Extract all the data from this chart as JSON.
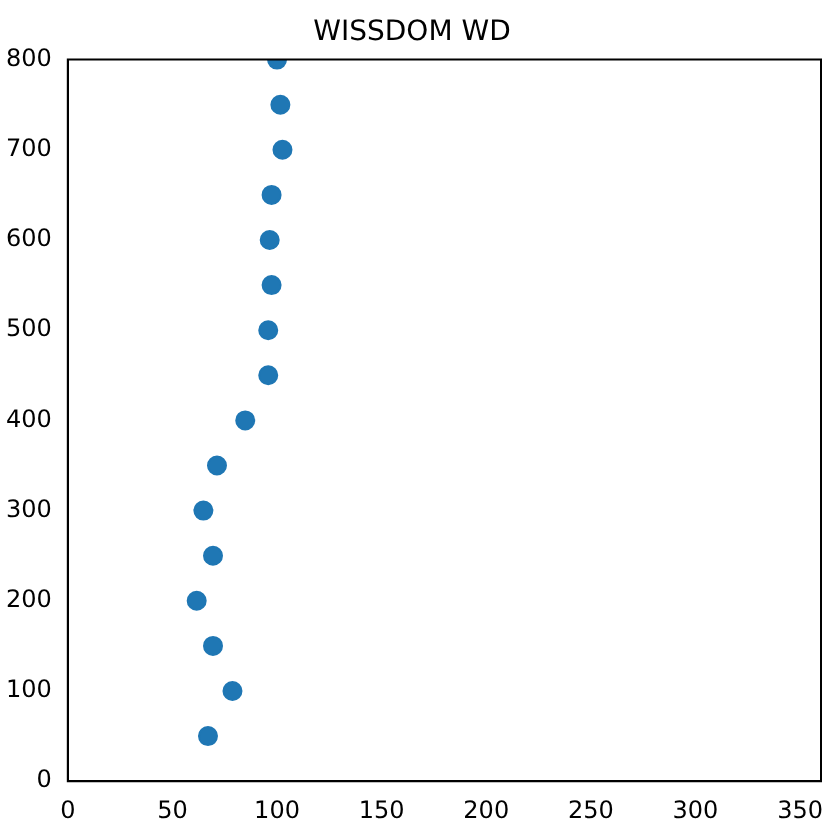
{
  "chart_data": {
    "type": "scatter",
    "title": "WISSDOM WD",
    "marker": "circle",
    "grid": false,
    "x": [
      67,
      78.7,
      69.4,
      61.6,
      69.4,
      64.8,
      71.3,
      84.8,
      95.8,
      95.8,
      97.4,
      96.5,
      97.4,
      102.6,
      101.6,
      100
    ],
    "values": [
      50,
      100,
      150,
      200,
      250,
      300,
      350,
      400,
      450,
      500,
      550,
      600,
      650,
      700,
      750,
      800
    ],
    "color": "#1f77b4",
    "xlim": [
      0,
      360
    ],
    "xticks": [
      0,
      50,
      100,
      150,
      200,
      250,
      300,
      350
    ],
    "ylim": [
      0,
      800
    ],
    "yticks": [
      0,
      100,
      200,
      300,
      400,
      500,
      600,
      700,
      800
    ]
  }
}
